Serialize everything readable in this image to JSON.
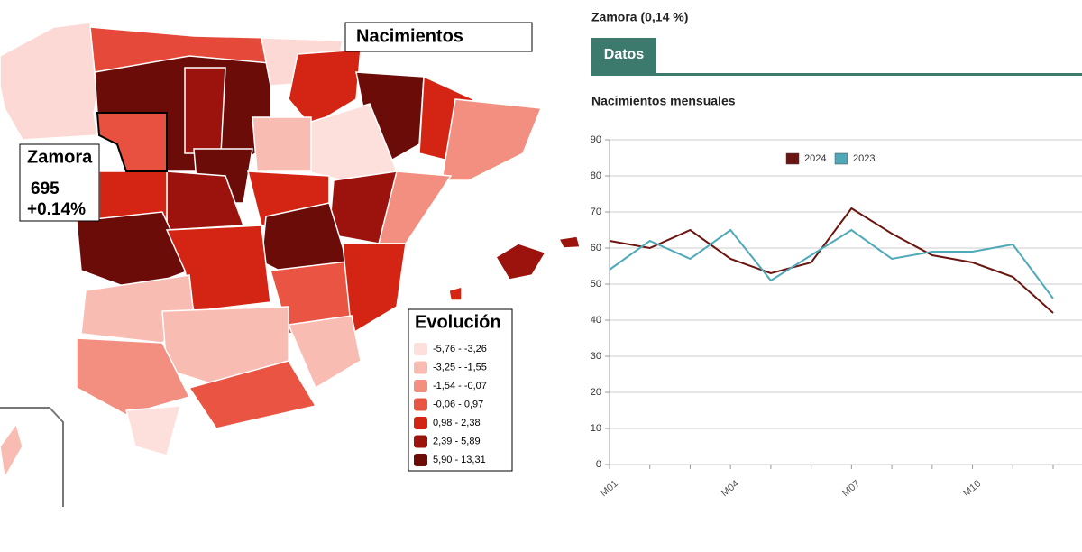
{
  "map": {
    "title": "Nacimientos",
    "callout": {
      "name": "Zamora",
      "value": "695",
      "change": "+0.14%"
    },
    "legend": {
      "title": "Evolución",
      "items": [
        {
          "label": "-5,76 - -3,26",
          "color": "#fde0dc"
        },
        {
          "label": "-3,25 - -1,55",
          "color": "#f9bcb3"
        },
        {
          "label": "-1,54 - -0,07",
          "color": "#f28f80"
        },
        {
          "label": "-0,06 -  0,97",
          "color": "#ea5443"
        },
        {
          "label": "0,98  -  2,38",
          "color": "#d42414"
        },
        {
          "label": "2,39  -  5,89",
          "color": "#9c130d"
        },
        {
          "label": "5,90  - 13,31",
          "color": "#6b0c08"
        }
      ]
    }
  },
  "panel": {
    "heading": "Zamora (0,14 %)",
    "tab": "Datos"
  },
  "chart_data": {
    "type": "line",
    "title": "Nacimientos mensuales",
    "categories": [
      "M01",
      null,
      null,
      "M04",
      null,
      null,
      "M07",
      null,
      null,
      "M10",
      null,
      null
    ],
    "series": [
      {
        "name": "2024",
        "color": "#6b1510",
        "values": [
          62,
          60,
          65,
          57,
          53,
          56,
          71,
          64,
          58,
          56,
          52,
          42
        ]
      },
      {
        "name": "2023",
        "color": "#4fa9b9",
        "values": [
          54,
          62,
          57,
          65,
          51,
          58,
          65,
          57,
          59,
          59,
          61,
          46
        ]
      }
    ],
    "ylim": [
      0,
      90
    ],
    "yticks": [
      0,
      10,
      20,
      30,
      40,
      50,
      60,
      70,
      80,
      90
    ],
    "grid": true,
    "legend": "top"
  }
}
